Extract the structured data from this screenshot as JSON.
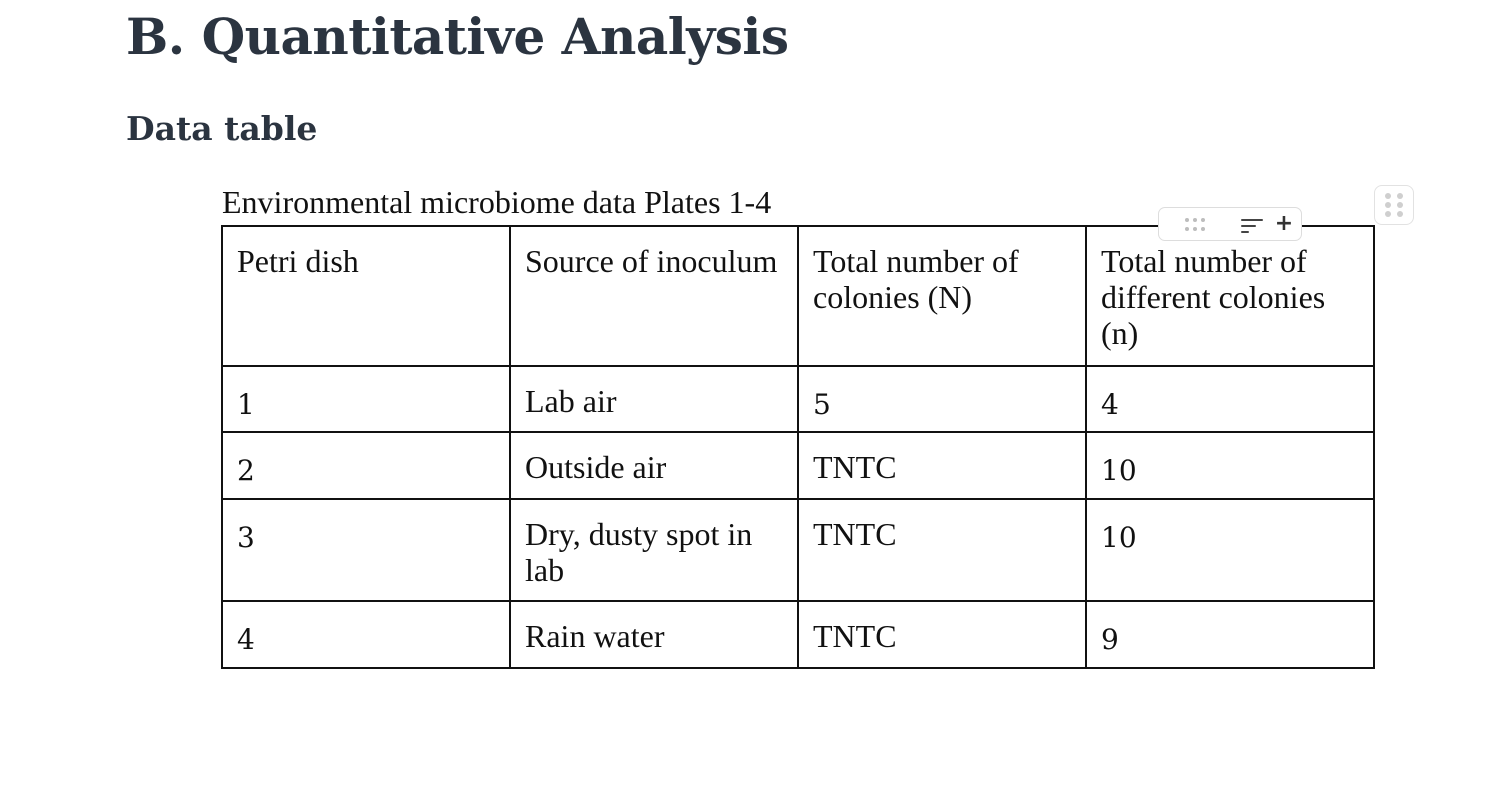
{
  "document": {
    "section_title": "B. Quantitative Analysis",
    "subsection_title": "Data table"
  },
  "table": {
    "caption": "Environmental microbiome data Plates 1-4",
    "headers": [
      "Petri dish",
      "Source of inoculum",
      "Total number of colonies (N)",
      "Total number of different colonies (n)"
    ],
    "rows": [
      [
        "1",
        "Lab air",
        "5",
        "4"
      ],
      [
        "2",
        "Outside air",
        "TNTC",
        "10"
      ],
      [
        "3",
        "Dry, dusty spot in lab",
        "TNTC",
        "10"
      ],
      [
        "4",
        "Rain water",
        "TNTC",
        "9"
      ]
    ]
  },
  "toolbar": {
    "icons": [
      "drag-handle-icon",
      "sort-lines-icon",
      "plus-icon"
    ],
    "add_label": "+"
  },
  "block_handle": {
    "icon": "grip-dots-icon"
  },
  "colors": {
    "heading": "#2b3440",
    "text": "#111111",
    "border": "#111111",
    "handle_dots": "#cfcfcf"
  }
}
